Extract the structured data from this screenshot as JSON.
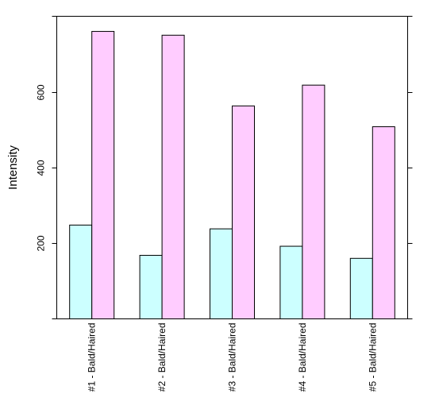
{
  "chart_data": {
    "type": "bar",
    "title": "",
    "xlabel": "",
    "ylabel": "Intensity",
    "categories": [
      "#1 - Bald/Haired",
      "#2 - Bald/Haired",
      "#3 - Bald/Haired",
      "#4 - Bald/Haired",
      "#5 - Bald/Haired"
    ],
    "series": [
      {
        "values": [
          248,
          168,
          238,
          192,
          160
        ],
        "color": "#ccffff"
      },
      {
        "values": [
          760,
          750,
          563,
          618,
          508
        ],
        "color": "#ffccff"
      }
    ],
    "ylim": [
      0,
      800
    ],
    "yticks": [
      200,
      400,
      600
    ],
    "grid": false,
    "legend": "none"
  }
}
